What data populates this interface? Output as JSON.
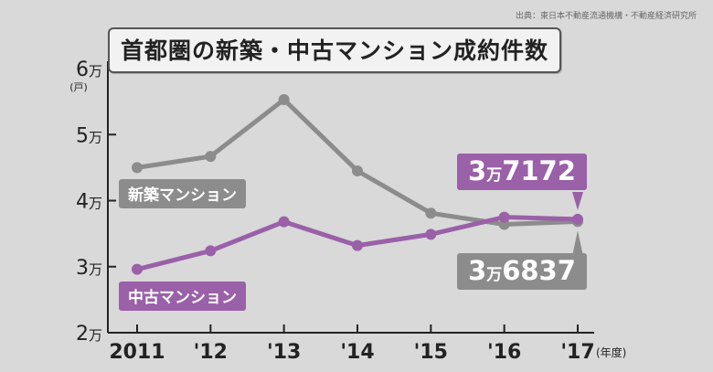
{
  "header": {
    "title": "首都圏の新築・中古マンション成約件数",
    "source": "出典：東日本不動産流通機構・不動産経済研究所"
  },
  "colors": {
    "background": "#d9d9d9",
    "new_series": "#8c8c8c",
    "used_series": "#9a60a8",
    "axis": "#222222"
  },
  "chart_data": {
    "type": "line",
    "title": "首都圏の新築・中古マンション成約件数",
    "x": [
      "2011",
      "'12",
      "'13",
      "'14",
      "'15",
      "'16",
      "'17"
    ],
    "x_unit": "(年度)",
    "y_unit": "(戸)",
    "ylim": [
      20000,
      60000
    ],
    "y_ticks": [
      {
        "value": 20000,
        "label": "2万"
      },
      {
        "value": 30000,
        "label": "3万"
      },
      {
        "value": 40000,
        "label": "4万"
      },
      {
        "value": 50000,
        "label": "5万"
      },
      {
        "value": 60000,
        "label": "6万"
      }
    ],
    "grid": false,
    "series": [
      {
        "name": "新築マンション",
        "color": "#8c8c8c",
        "values": [
          45000,
          46700,
          55300,
          44500,
          38100,
          36400,
          36837
        ],
        "end_label": "3万6837"
      },
      {
        "name": "中古マンション",
        "color": "#9a60a8",
        "values": [
          29600,
          32400,
          36800,
          33200,
          34900,
          37500,
          37172
        ],
        "end_label": "3万7172"
      }
    ]
  }
}
